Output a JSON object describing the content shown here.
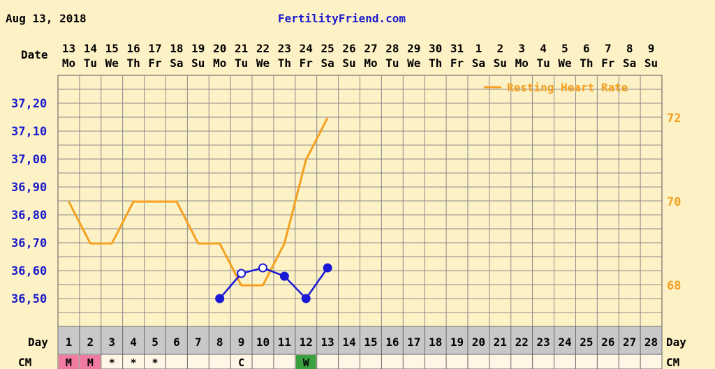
{
  "header": {
    "date": "Aug 13, 2018",
    "site": "FertilityFriend.com"
  },
  "labels": {
    "date_row": "Date",
    "day_row": "Day",
    "cm_row": "CM"
  },
  "chart_data": {
    "type": "line",
    "title": "",
    "days": [
      "13",
      "14",
      "15",
      "16",
      "17",
      "18",
      "19",
      "20",
      "21",
      "22",
      "23",
      "24",
      "25",
      "26",
      "27",
      "28",
      "29",
      "30",
      "31",
      "1",
      "2",
      "3",
      "4",
      "5",
      "6",
      "7",
      "8",
      "9"
    ],
    "weekdays": [
      "Mo",
      "Tu",
      "We",
      "Th",
      "Fr",
      "Sa",
      "Su",
      "Mo",
      "Tu",
      "We",
      "Th",
      "Fr",
      "Sa",
      "Su",
      "Mo",
      "Tu",
      "We",
      "Th",
      "Fr",
      "Sa",
      "Su",
      "Mo",
      "Tu",
      "We",
      "Th",
      "Fr",
      "Sa",
      "Su"
    ],
    "cycle_days": [
      "1",
      "2",
      "3",
      "4",
      "5",
      "6",
      "7",
      "8",
      "9",
      "10",
      "11",
      "12",
      "13",
      "14",
      "15",
      "16",
      "17",
      "18",
      "19",
      "20",
      "21",
      "22",
      "23",
      "24",
      "25",
      "26",
      "27",
      "28"
    ],
    "temp_axis": {
      "ticks": [
        "37,20",
        "37,10",
        "37,00",
        "36,90",
        "36,80",
        "36,70",
        "36,60",
        "36,50"
      ],
      "color": "#1a1acc"
    },
    "hr_axis": {
      "ticks": [
        "72",
        "70",
        "68"
      ],
      "color": "#f5a020"
    },
    "series": [
      {
        "name": "Resting Heart Rate",
        "color": "#f5a020",
        "axis": "hr",
        "values": [
          70,
          69,
          69,
          70,
          70,
          70,
          69,
          69,
          68,
          68,
          69,
          71,
          72
        ]
      },
      {
        "color": "#1a1ad6",
        "axis": "temp",
        "values": [
          null,
          null,
          null,
          null,
          null,
          null,
          null,
          36.5,
          36.59,
          36.61,
          36.58,
          36.5,
          36.61
        ],
        "open_markers": [
          8,
          9
        ]
      }
    ],
    "cm": [
      "M",
      "M",
      "*",
      "*",
      "*",
      "",
      "",
      "",
      "C",
      "",
      "",
      "W",
      "",
      "",
      "",
      "",
      "",
      "",
      "",
      "",
      "",
      "",
      "",
      "",
      "",
      "",
      "",
      ""
    ],
    "cm_colors": {
      "M": "#f07aa0",
      "W": "#3aa040"
    },
    "legend": "top-right"
  }
}
